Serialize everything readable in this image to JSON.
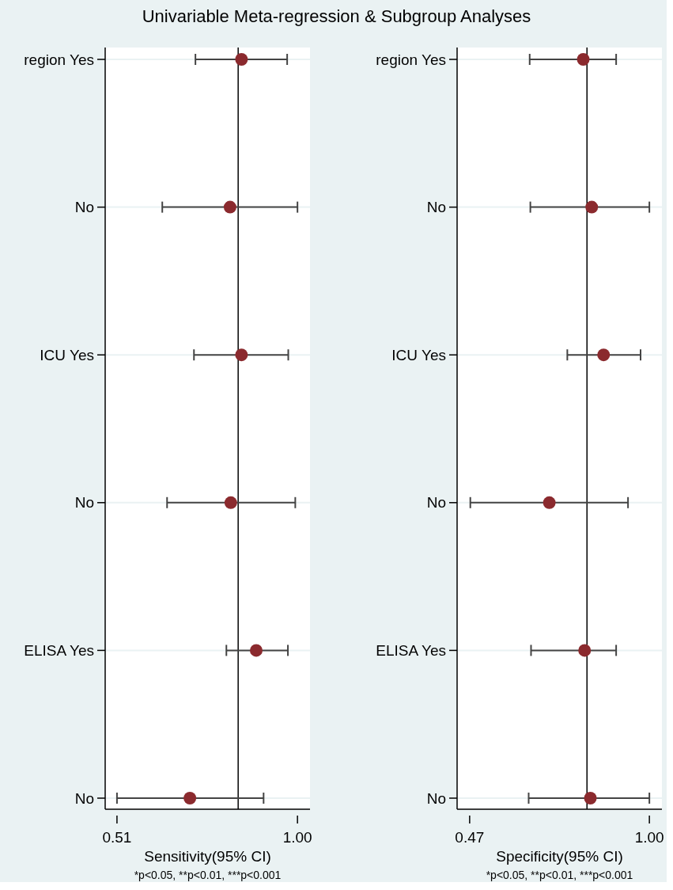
{
  "chart_data": [
    {
      "type": "scatter",
      "orientation": "horizontal",
      "title": "Univariable Meta-regression & Subgroup Analyses",
      "xlabel": "Sensitivity(95% CI)",
      "categories": [
        "region Yes",
        "No",
        "ICU Yes",
        "No",
        "ELISA Yes",
        "No"
      ],
      "series": [
        {
          "color": "#8b2a2e",
          "values": [
            0.848,
            0.817,
            0.848,
            0.819,
            0.888,
            0.708
          ],
          "errors": [
            [
              0.723,
              0.972
            ],
            [
              0.633,
              1.0
            ],
            [
              0.719,
              0.975
            ],
            [
              0.646,
              0.994
            ],
            [
              0.807,
              0.974
            ],
            [
              0.51,
              0.908
            ]
          ]
        }
      ],
      "xlim": [
        0.478,
        1.034
      ],
      "xticks": [
        0.51,
        {
          "value": 1.0,
          "label": "1.00"
        }
      ],
      "ref_lines": [
        {
          "axis": "x",
          "value": 0.839,
          "color": "#000000"
        }
      ],
      "grid": "y",
      "marker": "circle",
      "annotations": [
        "*p<0.05, **p<0.01, ***p<0.001"
      ]
    },
    {
      "type": "scatter",
      "orientation": "horizontal",
      "xlabel": "Specificity(95% CI)",
      "categories": [
        "region Yes",
        "No",
        "ICU Yes",
        "No",
        "ELISA Yes",
        "No"
      ],
      "series": [
        {
          "color": "#8b2a2e",
          "values": [
            0.805,
            0.83,
            0.865,
            0.705,
            0.809,
            0.826
          ],
          "errors": [
            [
              0.647,
              0.902
            ],
            [
              0.649,
              1.0
            ],
            [
              0.758,
              0.974
            ],
            [
              0.472,
              0.937
            ],
            [
              0.651,
              0.902
            ],
            [
              0.644,
              1.0
            ]
          ]
        }
      ],
      "xlim": [
        0.433,
        1.037
      ],
      "xticks": [
        0.47,
        {
          "value": 1.0,
          "label": "1.00"
        }
      ],
      "ref_lines": [
        {
          "axis": "x",
          "value": 0.816,
          "color": "#000000"
        }
      ],
      "grid": "y",
      "marker": "circle",
      "annotations": [
        "*p<0.05, **p<0.01, ***p<0.001"
      ]
    }
  ]
}
